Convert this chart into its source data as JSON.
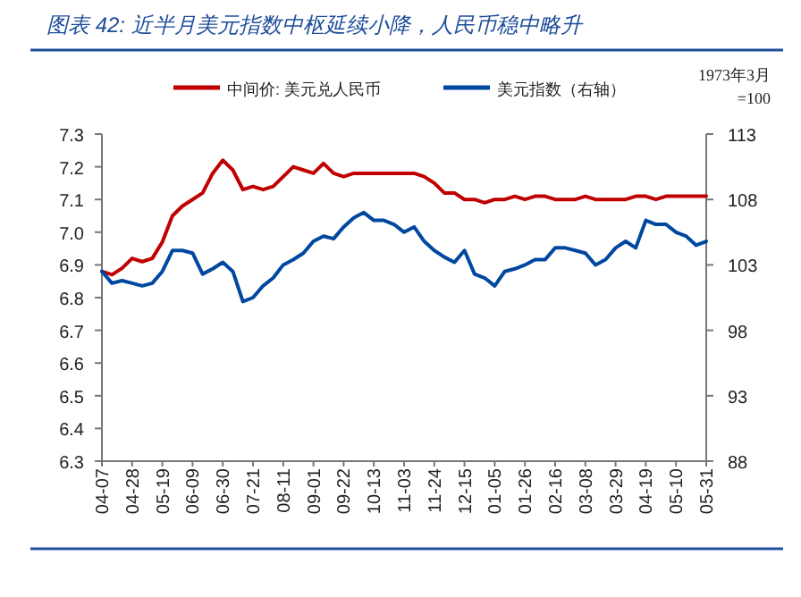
{
  "chart_data": {
    "type": "line",
    "title": "图表 42: 近半月美元指数中枢延续小降，人民币稳中略升",
    "y2label": "1973年3月\n=100",
    "categories": [
      "04-07",
      null,
      null,
      "04-28",
      null,
      null,
      "05-19",
      null,
      null,
      "06-09",
      null,
      null,
      "06-30",
      null,
      null,
      "07-21",
      null,
      null,
      "08-11",
      null,
      null,
      "09-01",
      null,
      null,
      "09-22",
      null,
      null,
      "10-13",
      null,
      null,
      "11-03",
      null,
      null,
      "11-24",
      null,
      null,
      "12-15",
      null,
      null,
      "01-05",
      null,
      null,
      "01-26",
      null,
      null,
      "02-16",
      null,
      null,
      "03-08",
      null,
      null,
      "03-29",
      null,
      null,
      "04-19",
      null,
      null,
      "05-10",
      null,
      null,
      "05-31"
    ],
    "series": [
      {
        "name": "中间价: 美元兑人民币",
        "color": "#c00000",
        "values": [
          6.88,
          6.87,
          6.89,
          6.92,
          6.91,
          6.92,
          6.97,
          7.05,
          7.08,
          7.1,
          7.12,
          7.18,
          7.22,
          7.19,
          7.13,
          7.14,
          7.13,
          7.14,
          7.17,
          7.2,
          7.19,
          7.18,
          7.21,
          7.18,
          7.17,
          7.18,
          7.18,
          7.18,
          7.18,
          7.18,
          7.18,
          7.18,
          7.17,
          7.15,
          7.12,
          7.12,
          7.1,
          7.1,
          7.09,
          7.1,
          7.1,
          7.11,
          7.1,
          7.11,
          7.11,
          7.1,
          7.1,
          7.1,
          7.11,
          7.1,
          7.1,
          7.1,
          7.1,
          7.11,
          7.11,
          7.1,
          7.11,
          7.11,
          7.11,
          7.11,
          7.11
        ]
      },
      {
        "name": "美元指数（右轴）",
        "color": "#0047a0",
        "axis": "y2",
        "values": [
          102.5,
          101.6,
          101.8,
          101.6,
          101.4,
          101.6,
          102.5,
          104.1,
          104.1,
          103.9,
          102.3,
          102.7,
          103.2,
          102.5,
          100.2,
          100.5,
          101.4,
          102.0,
          103.0,
          103.4,
          103.9,
          104.8,
          105.2,
          105.0,
          105.9,
          106.6,
          107.0,
          106.4,
          106.4,
          106.1,
          105.5,
          105.9,
          104.8,
          104.1,
          103.6,
          103.2,
          104.1,
          102.3,
          102.0,
          101.4,
          102.5,
          102.7,
          103.0,
          103.4,
          103.4,
          104.3,
          104.3,
          104.1,
          103.9,
          103.0,
          103.4,
          104.3,
          104.8,
          104.3,
          106.4,
          106.1,
          106.1,
          105.5,
          105.2,
          104.5,
          104.8
        ]
      }
    ],
    "ylim": [
      6.3,
      7.3
    ],
    "yticks": [
      6.3,
      6.4,
      6.5,
      6.6,
      6.7,
      6.8,
      6.9,
      {
        "value": 7.0,
        "label": "7.0"
      },
      7.1,
      7.2,
      7.3
    ],
    "y2lim": [
      88,
      113
    ],
    "y2ticks": [
      88,
      93,
      98,
      103,
      108,
      113
    ],
    "legend": "top",
    "grid": false,
    "marker": "none",
    "line_style": "solid"
  }
}
